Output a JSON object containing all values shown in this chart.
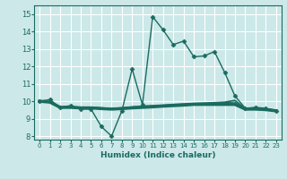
{
  "xlabel": "Humidex (Indice chaleur)",
  "xlim": [
    -0.5,
    23.5
  ],
  "ylim": [
    7.8,
    15.5
  ],
  "xticks": [
    0,
    1,
    2,
    3,
    4,
    5,
    6,
    7,
    8,
    9,
    10,
    11,
    12,
    13,
    14,
    15,
    16,
    17,
    18,
    19,
    20,
    21,
    22,
    23
  ],
  "yticks": [
    8,
    9,
    10,
    11,
    12,
    13,
    14,
    15
  ],
  "bg_color": "#cce8e8",
  "grid_color": "#ffffff",
  "line_color": "#1a6b60",
  "lines": [
    {
      "x": [
        0,
        1,
        2,
        3,
        4,
        5,
        6,
        7,
        8,
        9,
        10,
        11,
        12,
        13,
        14,
        15,
        16,
        17,
        18,
        19,
        20,
        21,
        22,
        23
      ],
      "y": [
        10.0,
        10.1,
        9.65,
        9.75,
        9.55,
        9.55,
        8.55,
        8.0,
        9.45,
        11.85,
        9.8,
        14.85,
        14.1,
        13.25,
        13.45,
        12.55,
        12.6,
        12.85,
        11.65,
        10.3,
        9.6,
        9.65,
        9.6,
        9.45
      ],
      "marker": "D",
      "markersize": 2.5,
      "lw": 1.0
    },
    {
      "x": [
        0,
        1,
        2,
        3,
        4,
        5,
        6,
        7,
        8,
        9,
        10,
        11,
        12,
        13,
        14,
        15,
        16,
        17,
        18,
        19,
        20,
        21,
        22,
        23
      ],
      "y": [
        10.0,
        9.95,
        9.65,
        9.7,
        9.65,
        9.65,
        9.62,
        9.58,
        9.62,
        9.68,
        9.72,
        9.75,
        9.78,
        9.82,
        9.85,
        9.88,
        9.9,
        9.92,
        9.95,
        10.05,
        9.58,
        9.62,
        9.58,
        9.48
      ],
      "marker": null,
      "markersize": 0,
      "lw": 1.2
    },
    {
      "x": [
        0,
        1,
        2,
        3,
        4,
        5,
        6,
        7,
        8,
        9,
        10,
        11,
        12,
        13,
        14,
        15,
        16,
        17,
        18,
        19,
        20,
        21,
        22,
        23
      ],
      "y": [
        10.0,
        9.95,
        9.65,
        9.65,
        9.62,
        9.62,
        9.58,
        9.55,
        9.58,
        9.62,
        9.65,
        9.68,
        9.72,
        9.75,
        9.78,
        9.82,
        9.82,
        9.82,
        9.82,
        9.82,
        9.55,
        9.55,
        9.52,
        9.45
      ],
      "marker": null,
      "markersize": 0,
      "lw": 2.5
    },
    {
      "x": [
        0,
        1,
        2,
        3,
        4,
        5,
        6,
        7,
        8,
        9,
        10,
        11,
        12,
        13,
        14,
        15,
        16,
        17,
        18,
        19,
        20,
        21,
        22,
        23
      ],
      "y": [
        10.0,
        9.95,
        9.65,
        9.65,
        9.62,
        9.62,
        9.58,
        9.55,
        9.58,
        9.62,
        9.65,
        9.68,
        9.72,
        9.78,
        9.82,
        9.85,
        9.87,
        9.9,
        9.92,
        9.95,
        9.55,
        9.6,
        9.55,
        9.45
      ],
      "marker": null,
      "markersize": 0,
      "lw": 0.8
    }
  ]
}
